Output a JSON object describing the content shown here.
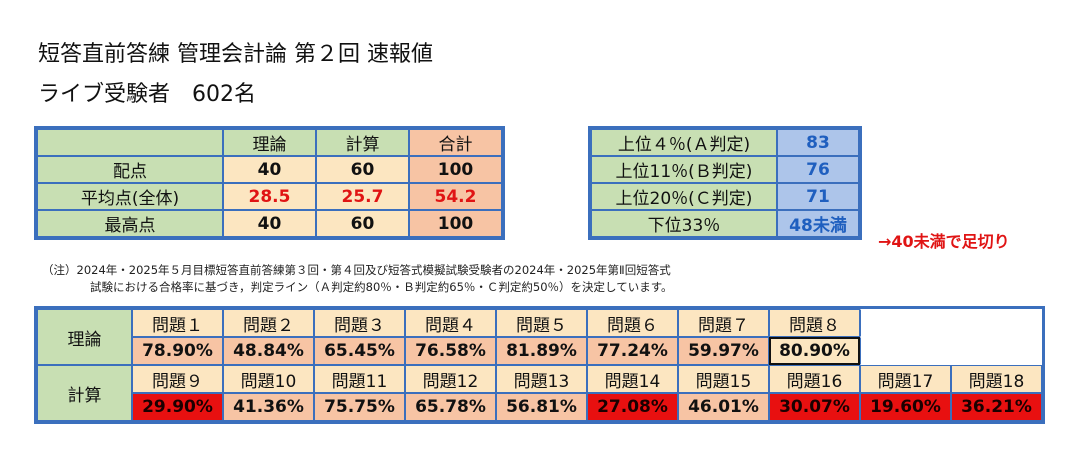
{
  "title": "短答直前答練 管理会計論 第２回 速報値",
  "subtitle": "ライブ受験者　602名",
  "score_table": {
    "corner": "",
    "headers": [
      "理論",
      "計算",
      "合計"
    ],
    "rows": [
      {
        "label": "配点",
        "values": [
          "40",
          "60",
          "100"
        ]
      },
      {
        "label": "平均点(全体)",
        "values": [
          "28.5",
          "25.7",
          "54.2"
        ]
      },
      {
        "label": "最高点",
        "values": [
          "40",
          "60",
          "100"
        ]
      }
    ]
  },
  "judgement": [
    {
      "label": "上位４％(Ａ判定)",
      "value": "83"
    },
    {
      "label": "上位11％(Ｂ判定)",
      "value": "76"
    },
    {
      "label": "上位20％(Ｃ判定)",
      "value": "71"
    },
    {
      "label": "下位33％",
      "value": "48未満"
    }
  ],
  "cutoff_note": "→40未満で足切り",
  "note_line1": "（注）2024年・2025年５月目標短答直前答練第３回・第４回及び短答式模擬試験受験者の2024年・2025年第Ⅱ回短答式",
  "note_line2": "試験における合格率に基づき，判定ライン（Ａ判定約80％・Ｂ判定約65％・Ｃ判定約50％）を決定しています。",
  "theory": {
    "label": "理論",
    "problems": [
      "問題１",
      "問題２",
      "問題３",
      "問題４",
      "問題５",
      "問題６",
      "問題７",
      "問題８"
    ],
    "rates": [
      "78.90%",
      "48.84%",
      "65.45%",
      "76.58%",
      "81.89%",
      "77.24%",
      "59.97%",
      "80.90%"
    ]
  },
  "calc": {
    "label": "計算",
    "problems": [
      "問題９",
      "問題10",
      "問題11",
      "問題12",
      "問題13",
      "問題14",
      "問題15",
      "問題16",
      "問題17",
      "問題18"
    ],
    "rates": [
      "29.90%",
      "41.36%",
      "75.75%",
      "65.78%",
      "56.81%",
      "27.08%",
      "46.01%",
      "30.07%",
      "19.60%",
      "36.21%"
    ]
  },
  "colors": {
    "border": "#3b6fbd",
    "label_green": "#c8dfb3",
    "cream": "#fce6c1",
    "salmon": "#f7c4a4",
    "low_rate_red": "#e81010",
    "judge_blue": "#adc5ea",
    "emphasis_red": "#e01414"
  }
}
